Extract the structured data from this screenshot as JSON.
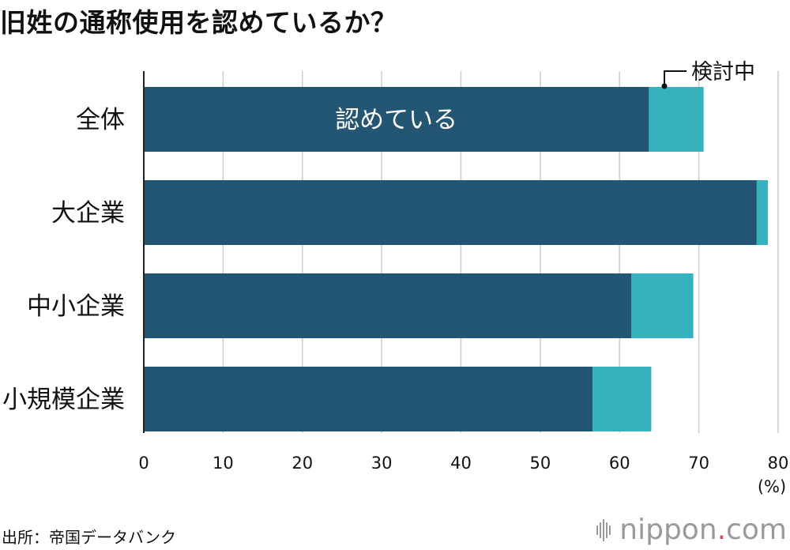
{
  "title": "旧姓の通称使用を認めているか？",
  "source": "出所：帝国データバンク",
  "brand": {
    "name": "nippon",
    "dot": ".",
    "tld": "com"
  },
  "colors": {
    "approved": "#225673",
    "considering": "#34b3be",
    "grid": "#cccccc",
    "axis": "#222222",
    "text": "#111111",
    "brand": "#9a9a9a",
    "brand_dot": "#d84b5c"
  },
  "chart_data": {
    "type": "bar",
    "orientation": "horizontal",
    "stacked": true,
    "categories": [
      "全体",
      "大企業",
      "中小企業",
      "小規模企業"
    ],
    "series": [
      {
        "name": "認めている",
        "values": [
          63.7,
          77.3,
          61.5,
          56.6
        ],
        "color": "#225673"
      },
      {
        "name": "検討中",
        "values": [
          6.9,
          1.4,
          7.8,
          7.4
        ],
        "color": "#34b3be"
      }
    ],
    "xlim": [
      0,
      80
    ],
    "xticks": [
      0,
      10,
      20,
      30,
      40,
      50,
      60,
      70,
      80
    ],
    "xunit": "(%)",
    "grid": true,
    "legend": "inline labels"
  }
}
